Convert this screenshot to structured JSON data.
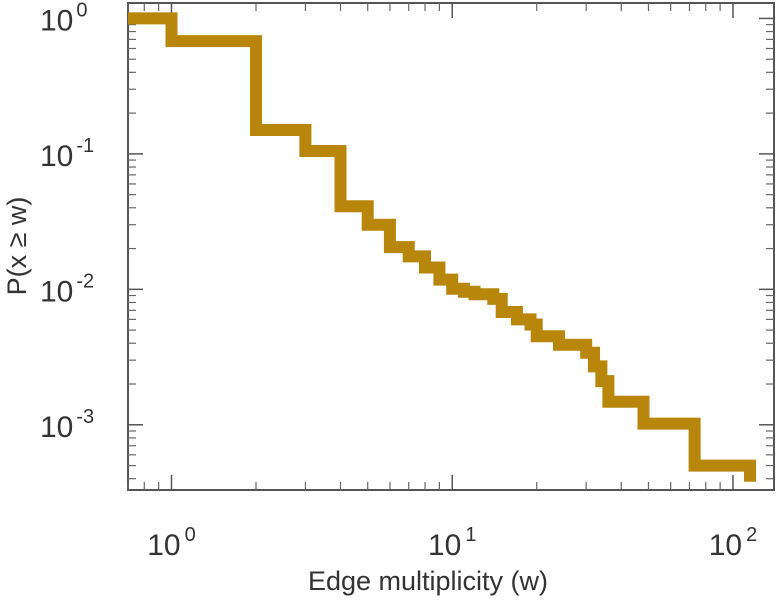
{
  "chart_data": {
    "type": "line",
    "step": true,
    "xscale": "log",
    "yscale": "log",
    "xlabel": "Edge multiplicity (w)",
    "ylabel": "P(x ≥ w)",
    "xlim": [
      0.7,
      140
    ],
    "ylim": [
      0.00033,
      1.3
    ],
    "x_ticks": [
      {
        "value": 1,
        "base": "10",
        "exp": "0"
      },
      {
        "value": 10,
        "base": "10",
        "exp": "1"
      },
      {
        "value": 100,
        "base": "10",
        "exp": "2"
      }
    ],
    "y_ticks": [
      {
        "value": 1,
        "base": "10",
        "exp": "0"
      },
      {
        "value": 0.1,
        "base": "10",
        "exp": "-1"
      },
      {
        "value": 0.01,
        "base": "10",
        "exp": "-2"
      },
      {
        "value": 0.001,
        "base": "10",
        "exp": "-3"
      }
    ],
    "grid": false,
    "series": [
      {
        "color": "#b8860b",
        "x": [
          0.7,
          1,
          2,
          3,
          4,
          5,
          6,
          7,
          8,
          9,
          10,
          11,
          12,
          14,
          15,
          17,
          19,
          20,
          24,
          30,
          32,
          34,
          36,
          48,
          73,
          115
        ],
        "y": [
          1.0,
          0.68,
          0.15,
          0.105,
          0.041,
          0.03,
          0.0205,
          0.0175,
          0.0145,
          0.0118,
          0.0101,
          0.0096,
          0.0092,
          0.0085,
          0.0068,
          0.006,
          0.0055,
          0.0045,
          0.0039,
          0.0034,
          0.0027,
          0.0021,
          0.00148,
          0.00102,
          0.0005,
          0.00038
        ]
      }
    ]
  }
}
